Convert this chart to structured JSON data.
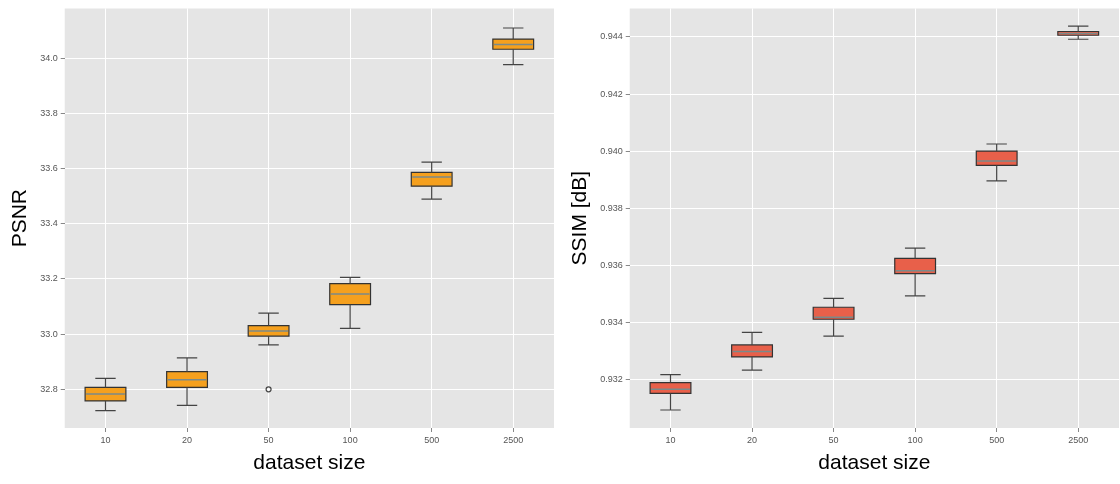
{
  "chart_data": [
    {
      "type": "box",
      "xlabel": "dataset size",
      "ylabel": "PSNR",
      "categories": [
        "10",
        "20",
        "50",
        "100",
        "500",
        "2500"
      ],
      "color": "#f5a01e",
      "ylim": [
        32.66,
        34.18
      ],
      "yticks": [
        {
          "value": 32.8,
          "label": "32.8"
        },
        {
          "value": 33.0,
          "label": "33.0"
        },
        {
          "value": 33.2,
          "label": "33.2"
        },
        {
          "value": 33.4,
          "label": "33.4"
        },
        {
          "value": 33.6,
          "label": "33.6"
        },
        {
          "value": 33.8,
          "label": "33.8"
        },
        {
          "value": 34.0,
          "label": "34.0"
        }
      ],
      "grid": true,
      "boxes": [
        {
          "low": 32.723,
          "q1": 32.758,
          "median": 32.783,
          "q3": 32.807,
          "high": 32.84
        },
        {
          "low": 32.742,
          "q1": 32.807,
          "median": 32.835,
          "q3": 32.864,
          "high": 32.914
        },
        {
          "low": 32.961,
          "q1": 32.993,
          "median": 33.011,
          "q3": 33.031,
          "high": 33.076,
          "outliers": [
            32.8
          ]
        },
        {
          "low": 33.021,
          "q1": 33.107,
          "median": 33.145,
          "q3": 33.183,
          "high": 33.206
        },
        {
          "low": 33.489,
          "q1": 33.536,
          "median": 33.569,
          "q3": 33.586,
          "high": 33.623
        },
        {
          "low": 33.976,
          "q1": 34.032,
          "median": 34.049,
          "q3": 34.069,
          "high": 34.109
        }
      ]
    },
    {
      "type": "box",
      "xlabel": "dataset size",
      "ylabel": "SSIM [dB]",
      "categories": [
        "10",
        "20",
        "50",
        "100",
        "500",
        "2500"
      ],
      "color": "#e8604a",
      "ylim": [
        0.9303,
        0.945
      ],
      "yticks": [
        0.932,
        0.934,
        0.936,
        0.938,
        {
          "value": 0.94,
          "label": "0.940"
        },
        0.942,
        0.944
      ],
      "grid": true,
      "boxes": [
        {
          "low": 0.93093,
          "q1": 0.93151,
          "median": 0.93166,
          "q3": 0.93189,
          "high": 0.93217
        },
        {
          "low": 0.93233,
          "q1": 0.93279,
          "median": 0.93298,
          "q3": 0.93321,
          "high": 0.93365
        },
        {
          "low": 0.93352,
          "q1": 0.93411,
          "median": 0.93418,
          "q3": 0.93453,
          "high": 0.93484
        },
        {
          "low": 0.93493,
          "q1": 0.93571,
          "median": 0.93581,
          "q3": 0.93624,
          "high": 0.9366
        },
        {
          "low": 0.93896,
          "q1": 0.9395,
          "median": 0.93965,
          "q3": 0.94,
          "high": 0.94025
        },
        {
          "low": 0.94392,
          "q1": 0.94406,
          "median": 0.94412,
          "q3": 0.94419,
          "high": 0.94438
        }
      ]
    }
  ]
}
